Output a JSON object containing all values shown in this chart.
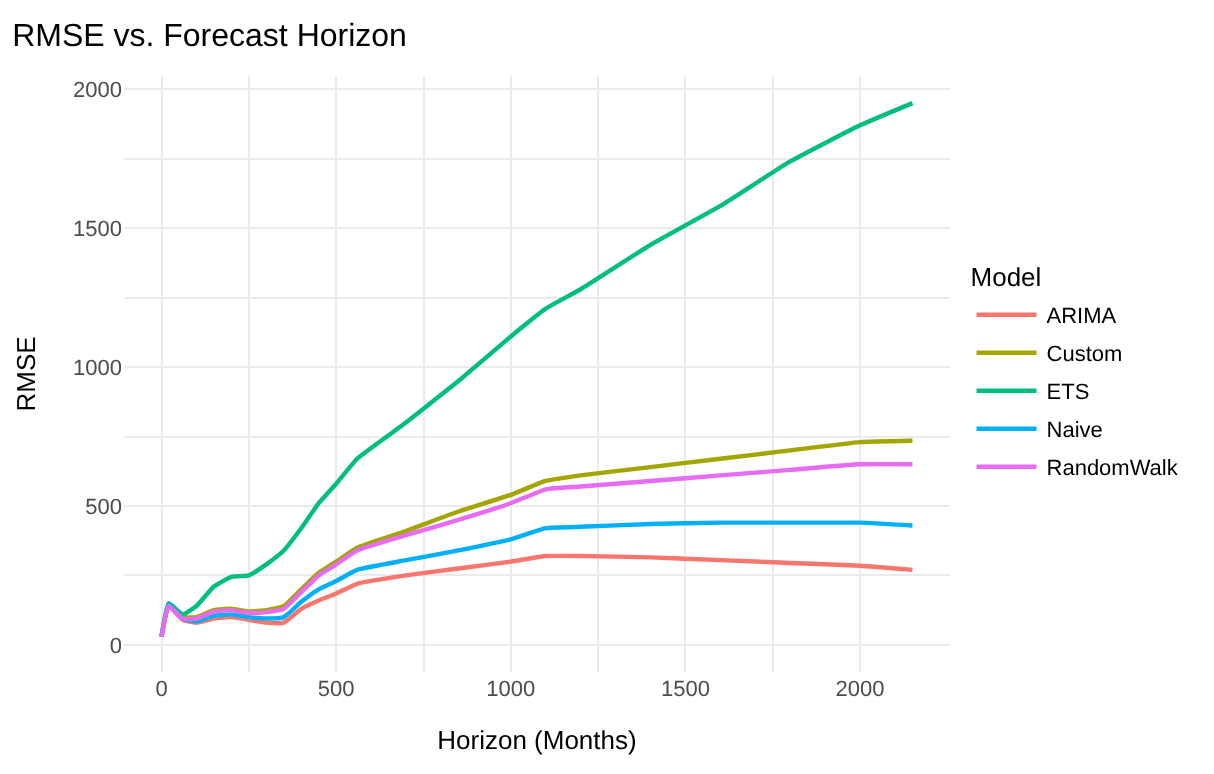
{
  "chart_data": {
    "type": "line",
    "title": "RMSE vs. Forecast Horizon",
    "xlabel": "Horizon (Months)",
    "ylabel": "RMSE",
    "legend_title": "Model",
    "legend": "right",
    "grid": true,
    "line_style": "solid",
    "marker": "none",
    "x": [
      0,
      20,
      60,
      100,
      150,
      200,
      250,
      300,
      350,
      400,
      450,
      500,
      560,
      700,
      850,
      1000,
      1100,
      1200,
      1400,
      1600,
      1800,
      2000,
      2150
    ],
    "xlim": [
      -107.5,
      2257.5
    ],
    "xticks": [
      0,
      {
        "value": 250,
        "label": null
      },
      500,
      {
        "value": 750,
        "label": null
      },
      1000,
      {
        "value": 1250,
        "label": null
      },
      1500,
      {
        "value": 1750,
        "label": null
      },
      2000
    ],
    "ylim": [
      -97.5,
      2047.5
    ],
    "yticks": [
      0,
      {
        "value": 250,
        "label": null
      },
      500,
      {
        "value": 750,
        "label": null
      },
      1000,
      {
        "value": 1250,
        "label": null
      },
      1500,
      {
        "value": 1750,
        "label": null
      },
      2000
    ],
    "series": [
      {
        "name": "ARIMA",
        "color": "#f8766d",
        "values": [
          30,
          140,
          90,
          80,
          95,
          100,
          90,
          80,
          80,
          130,
          160,
          185,
          220,
          250,
          275,
          300,
          320,
          320,
          315,
          305,
          295,
          285,
          270
        ]
      },
      {
        "name": "Custom",
        "color": "#a3a500",
        "values": [
          30,
          140,
          100,
          100,
          125,
          130,
          120,
          125,
          140,
          200,
          260,
          300,
          350,
          410,
          480,
          540,
          590,
          610,
          640,
          670,
          700,
          730,
          735
        ]
      },
      {
        "name": "ETS",
        "color": "#00bf7d",
        "values": [
          30,
          150,
          110,
          140,
          210,
          245,
          250,
          290,
          340,
          420,
          510,
          580,
          670,
          800,
          950,
          1110,
          1210,
          1280,
          1440,
          1580,
          1740,
          1870,
          1950
        ]
      },
      {
        "name": "Naive",
        "color": "#00b0f6",
        "values": [
          30,
          145,
          95,
          85,
          105,
          110,
          100,
          95,
          100,
          155,
          200,
          230,
          270,
          305,
          340,
          380,
          420,
          425,
          435,
          440,
          440,
          440,
          430
        ]
      },
      {
        "name": "RandomWalk",
        "color": "#e76bf3",
        "values": [
          30,
          140,
          95,
          95,
          120,
          125,
          115,
          118,
          130,
          190,
          250,
          290,
          340,
          395,
          450,
          510,
          560,
          570,
          590,
          610,
          630,
          650,
          650
        ]
      }
    ]
  }
}
